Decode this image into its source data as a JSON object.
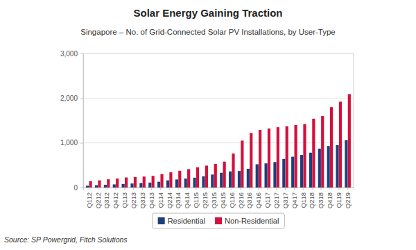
{
  "chart_data": {
    "type": "bar",
    "title": "Solar Energy Gaining Traction",
    "subtitle": "Singapore – No. of Grid-Connected Solar PV Installations, by User-Type",
    "categories": [
      "Q112",
      "Q212",
      "Q312",
      "Q412",
      "Q113",
      "Q213",
      "Q313",
      "Q413",
      "Q114",
      "Q214",
      "Q314",
      "Q414",
      "Q115",
      "Q215",
      "Q315",
      "Q415",
      "Q116",
      "Q216",
      "Q316",
      "Q416",
      "Q117",
      "Q217",
      "Q317",
      "Q417",
      "Q118",
      "Q218",
      "Q318",
      "Q418",
      "Q119",
      "Q219"
    ],
    "series": [
      {
        "name": "Residential",
        "color": "#1c3f7c",
        "values": [
          40,
          50,
          60,
          70,
          80,
          90,
          100,
          110,
          130,
          160,
          180,
          200,
          220,
          250,
          290,
          330,
          360,
          370,
          420,
          520,
          540,
          570,
          640,
          690,
          730,
          780,
          870,
          930,
          950,
          1060
        ]
      },
      {
        "name": "Non-Residential",
        "color": "#d4103c",
        "values": [
          140,
          160,
          185,
          200,
          225,
          235,
          245,
          260,
          300,
          340,
          375,
          410,
          450,
          490,
          530,
          580,
          760,
          1050,
          1220,
          1290,
          1320,
          1350,
          1370,
          1400,
          1420,
          1540,
          1600,
          1800,
          1920,
          2090
        ]
      }
    ],
    "ylim": [
      0,
      3000
    ],
    "yticks": [
      0,
      {
        "value": 1000,
        "label": "1,000"
      },
      {
        "value": 2000,
        "label": "2,000"
      },
      {
        "value": 3000,
        "label": "3,000"
      }
    ],
    "grid": true,
    "legend": "bottom",
    "annotations": [
      "Source: SP Powergrid, Fitch Solutions"
    ]
  }
}
